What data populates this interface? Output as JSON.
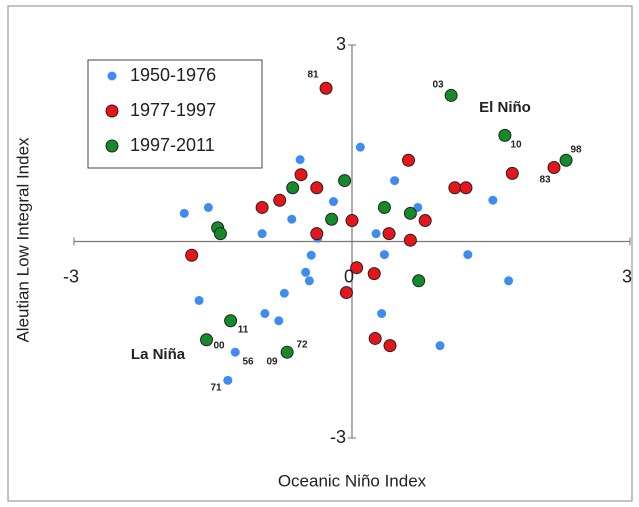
{
  "chart_data": {
    "type": "scatter",
    "x_label": "Oceanic Niño Index",
    "y_label": "Aleutian Low Integral Index",
    "xlim": [
      -3,
      3
    ],
    "ylim": [
      -3,
      3
    ],
    "xticks": [
      -3,
      0,
      3
    ],
    "yticks": [
      -3,
      3
    ],
    "legend": "top-left",
    "series": [
      {
        "name": "1950-1976",
        "color": "#3f8cf0",
        "x": [
          -1.81,
          -1.55,
          -0.56,
          0.09,
          0.46,
          0.71,
          1.52,
          -0.65,
          -0.2,
          -0.97,
          -0.37,
          0.26,
          0.35,
          1.25,
          1.69,
          -0.5,
          -0.46,
          -0.73,
          -1.65,
          -0.94,
          -0.79,
          0.32,
          0.95,
          -1.26,
          -1.34,
          -0.44
        ],
        "values": [
          0.43,
          0.52,
          1.25,
          1.44,
          0.93,
          0.52,
          0.63,
          0.34,
          0.61,
          0.12,
          0.05,
          0.12,
          -0.2,
          -0.2,
          -0.6,
          -0.47,
          -0.6,
          -0.79,
          -0.9,
          -1.1,
          -1.21,
          -1.1,
          -1.59,
          -1.69,
          -2.12,
          -0.21
        ]
      },
      {
        "name": "1977-1997",
        "color": "#e8141c",
        "x": [
          -0.28,
          -1.73,
          -0.97,
          -0.78,
          -0.55,
          -0.38,
          -0.38,
          0,
          0.61,
          0.4,
          0.63,
          0.79,
          1.11,
          1.23,
          1.73,
          2.18,
          0.05,
          0.24,
          -0.06,
          0.25,
          0.41
        ],
        "values": [
          2.34,
          -0.21,
          0.52,
          0.63,
          1.02,
          0.82,
          0.12,
          0.32,
          1.24,
          0.12,
          0.02,
          0.32,
          0.82,
          0.82,
          1.04,
          1.13,
          -0.4,
          -0.49,
          -0.78,
          -1.48,
          -1.59
        ]
      },
      {
        "name": "1997-2011",
        "color": "#158a2a",
        "x": [
          1.07,
          1.65,
          2.31,
          -0.08,
          -0.64,
          0.35,
          0.63,
          -0.22,
          -1.45,
          -1.42,
          0.72,
          -1.31,
          -1.57,
          -0.7
        ],
        "values": [
          2.23,
          1.62,
          1.24,
          0.93,
          0.82,
          0.52,
          0.43,
          0.34,
          0.21,
          0.12,
          -0.6,
          -1.21,
          -1.5,
          -1.69
        ]
      }
    ],
    "annotations": [
      {
        "text": "81"
      },
      {
        "text": "03"
      },
      {
        "text": "10"
      },
      {
        "text": "98"
      },
      {
        "text": "83"
      },
      {
        "text": "11"
      },
      {
        "text": "00"
      },
      {
        "text": "56"
      },
      {
        "text": "09"
      },
      {
        "text": "72"
      },
      {
        "text": "71"
      },
      {
        "text": "El Niño"
      },
      {
        "text": "La Niña"
      }
    ]
  }
}
